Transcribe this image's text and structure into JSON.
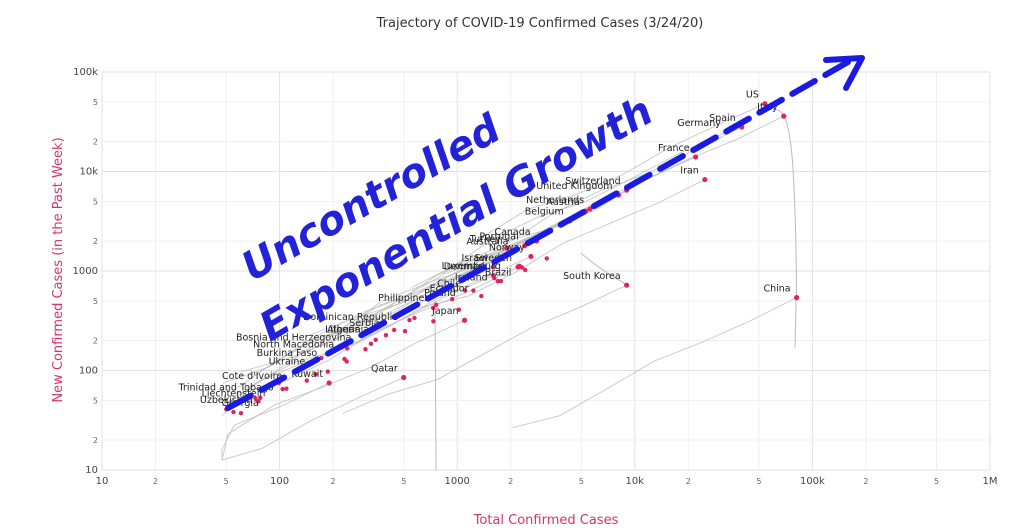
{
  "chart_data": {
    "type": "scatter",
    "title": "Trajectory of COVID-19 Confirmed Cases (3/24/20)",
    "xlabel": "Total Confirmed Cases",
    "ylabel": "New Confirmed Cases (in the Past Week)",
    "x_scale": "log",
    "y_scale": "log",
    "xlim": [
      10,
      1000000
    ],
    "ylim": [
      10,
      100000
    ],
    "grid": true,
    "x_ticks": [
      {
        "v": 10,
        "t": "10"
      },
      {
        "v": 20,
        "t": "2"
      },
      {
        "v": 50,
        "t": "5"
      },
      {
        "v": 100,
        "t": "100"
      },
      {
        "v": 200,
        "t": "2"
      },
      {
        "v": 500,
        "t": "5"
      },
      {
        "v": 1000,
        "t": "1000"
      },
      {
        "v": 2000,
        "t": "2"
      },
      {
        "v": 5000,
        "t": "5"
      },
      {
        "v": 10000,
        "t": "10k"
      },
      {
        "v": 20000,
        "t": "2"
      },
      {
        "v": 50000,
        "t": "5"
      },
      {
        "v": 100000,
        "t": "100k"
      },
      {
        "v": 200000,
        "t": "2"
      },
      {
        "v": 500000,
        "t": "5"
      },
      {
        "v": 1000000,
        "t": "1M"
      }
    ],
    "y_ticks": [
      {
        "v": 10,
        "t": "10"
      },
      {
        "v": 20,
        "t": "2"
      },
      {
        "v": 50,
        "t": "5"
      },
      {
        "v": 100,
        "t": "100"
      },
      {
        "v": 200,
        "t": "2"
      },
      {
        "v": 500,
        "t": "5"
      },
      {
        "v": 1000,
        "t": "1000"
      },
      {
        "v": 2000,
        "t": "2"
      },
      {
        "v": 5000,
        "t": "5"
      },
      {
        "v": 10000,
        "t": "10k"
      },
      {
        "v": 20000,
        "t": "2"
      },
      {
        "v": 50000,
        "t": "5"
      },
      {
        "v": 100000,
        "t": "100k"
      }
    ],
    "marker_color": "#e0245e",
    "line_color": "#bbbbbb",
    "points": [
      {
        "label": "US",
        "x": 54000,
        "y": 48000
      },
      {
        "label": "Italy",
        "x": 69000,
        "y": 36000
      },
      {
        "label": "Spain",
        "x": 40000,
        "y": 28000
      },
      {
        "label": "Germany",
        "x": 33000,
        "y": 25000
      },
      {
        "label": "France",
        "x": 22000,
        "y": 14000
      },
      {
        "label": "Iran",
        "x": 24800,
        "y": 8300
      },
      {
        "label": "Switzerland",
        "x": 9000,
        "y": 6500
      },
      {
        "label": "United Kingdom",
        "x": 8100,
        "y": 5800
      },
      {
        "label": "Netherlands",
        "x": 5600,
        "y": 4200
      },
      {
        "label": "Austria",
        "x": 5300,
        "y": 4000
      },
      {
        "label": "Belgium",
        "x": 4300,
        "y": 3200
      },
      {
        "label": "Canada",
        "x": 2800,
        "y": 2000
      },
      {
        "label": "Portugal",
        "x": 2400,
        "y": 1800
      },
      {
        "label": "Turkey",
        "x": 1900,
        "y": 1700
      },
      {
        "label": "Australia",
        "x": 2100,
        "y": 1600
      },
      {
        "label": "Norway",
        "x": 2600,
        "y": 1400
      },
      {
        "label": "Sweden",
        "x": 2200,
        "y": 1100
      },
      {
        "label": "Israel",
        "x": 1600,
        "y": 1100
      },
      {
        "label": "Denmark",
        "x": 1600,
        "y": 900
      },
      {
        "label": "South Korea",
        "x": 9000,
        "y": 720
      },
      {
        "label": "China",
        "x": 81500,
        "y": 540
      },
      {
        "label": "Japan",
        "x": 1100,
        "y": 320
      },
      {
        "label": "Qatar",
        "x": 500,
        "y": 85
      },
      {
        "label": "Kuwait",
        "x": 190,
        "y": 75
      }
    ],
    "labels_only": [
      {
        "label": "Luxembourg",
        "x": 1200,
        "y": 1050
      },
      {
        "label": "Brazil",
        "x": 1700,
        "y": 900
      },
      {
        "label": "Ireland",
        "x": 1200,
        "y": 800
      },
      {
        "label": "Chile",
        "x": 900,
        "y": 700
      },
      {
        "label": "Ecuador",
        "x": 900,
        "y": 620
      },
      {
        "label": "Poland",
        "x": 800,
        "y": 560
      },
      {
        "label": "Philippines",
        "x": 500,
        "y": 500
      },
      {
        "label": "Dominican Republic",
        "x": 250,
        "y": 320
      },
      {
        "label": "Serbia",
        "x": 300,
        "y": 280
      },
      {
        "label": "Algeria",
        "x": 230,
        "y": 240
      },
      {
        "label": "Lithuania",
        "x": 240,
        "y": 240
      },
      {
        "label": "Bosnia and Herzegovina",
        "x": 120,
        "y": 200
      },
      {
        "label": "North Macedonia",
        "x": 120,
        "y": 170
      },
      {
        "label": "Burkina Faso",
        "x": 110,
        "y": 140
      },
      {
        "label": "Ukraine",
        "x": 110,
        "y": 115
      },
      {
        "label": "Cote d'Ivoire",
        "x": 70,
        "y": 82
      },
      {
        "label": "Trinidad and Tobago",
        "x": 50,
        "y": 63
      },
      {
        "label": "Liechtenstein",
        "x": 55,
        "y": 55
      },
      {
        "label": "Uzbekistan",
        "x": 50,
        "y": 47
      },
      {
        "label": "Georgia",
        "x": 60,
        "y": 44
      }
    ],
    "annotation_lines": [
      "Uncontrolled",
      "Exponential Growth"
    ]
  }
}
